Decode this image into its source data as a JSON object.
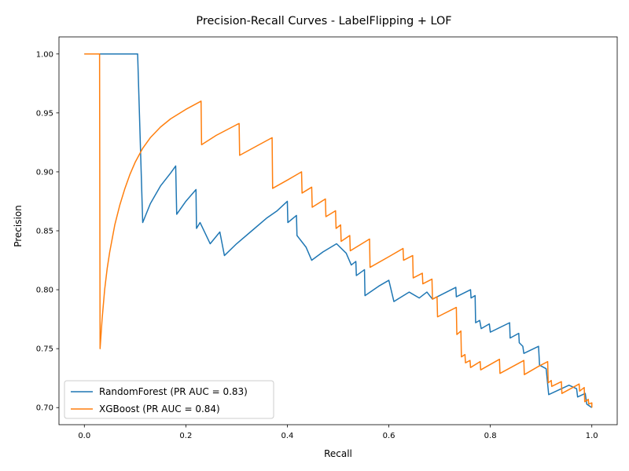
{
  "chart_data": {
    "type": "line",
    "title": "Precision-Recall Curves - LabelFlipping + LOF",
    "xlabel": "Recall",
    "ylabel": "Precision",
    "xlim": [
      -0.05,
      1.05
    ],
    "ylim": [
      0.6855,
      1.0145
    ],
    "xticks": [
      0.0,
      0.2,
      0.4,
      0.6,
      0.8,
      1.0
    ],
    "xtick_labels": [
      "0.0",
      "0.2",
      "0.4",
      "0.6",
      "0.8",
      "1.0"
    ],
    "yticks": [
      0.7,
      0.75,
      0.8,
      0.85,
      0.9,
      0.95,
      1.0
    ],
    "ytick_labels": [
      "0.70",
      "0.75",
      "0.80",
      "0.85",
      "0.90",
      "0.95",
      "1.00"
    ],
    "grid": false,
    "legend_position": "lower-left",
    "series": [
      {
        "name": "RandomForest (PR AUC = 0.83)",
        "color": "#1f77b4",
        "points": [
          [
            0.0,
            1.0
          ],
          [
            0.105,
            1.0
          ],
          [
            0.115,
            0.857
          ],
          [
            0.13,
            0.873
          ],
          [
            0.15,
            0.888
          ],
          [
            0.17,
            0.899
          ],
          [
            0.18,
            0.905
          ],
          [
            0.182,
            0.864
          ],
          [
            0.2,
            0.875
          ],
          [
            0.22,
            0.885
          ],
          [
            0.221,
            0.852
          ],
          [
            0.228,
            0.857
          ],
          [
            0.248,
            0.839
          ],
          [
            0.267,
            0.849
          ],
          [
            0.276,
            0.829
          ],
          [
            0.3,
            0.839
          ],
          [
            0.33,
            0.85
          ],
          [
            0.36,
            0.861
          ],
          [
            0.38,
            0.867
          ],
          [
            0.4,
            0.875
          ],
          [
            0.401,
            0.857
          ],
          [
            0.418,
            0.863
          ],
          [
            0.419,
            0.846
          ],
          [
            0.437,
            0.836
          ],
          [
            0.448,
            0.825
          ],
          [
            0.47,
            0.832
          ],
          [
            0.497,
            0.839
          ],
          [
            0.516,
            0.831
          ],
          [
            0.526,
            0.821
          ],
          [
            0.535,
            0.824
          ],
          [
            0.536,
            0.812
          ],
          [
            0.552,
            0.817
          ],
          [
            0.553,
            0.795
          ],
          [
            0.58,
            0.803
          ],
          [
            0.6,
            0.808
          ],
          [
            0.61,
            0.79
          ],
          [
            0.64,
            0.798
          ],
          [
            0.66,
            0.793
          ],
          [
            0.675,
            0.798
          ],
          [
            0.686,
            0.792
          ],
          [
            0.7,
            0.795
          ],
          [
            0.732,
            0.802
          ],
          [
            0.733,
            0.794
          ],
          [
            0.761,
            0.8
          ],
          [
            0.762,
            0.793
          ],
          [
            0.77,
            0.795
          ],
          [
            0.771,
            0.772
          ],
          [
            0.779,
            0.774
          ],
          [
            0.782,
            0.767
          ],
          [
            0.798,
            0.771
          ],
          [
            0.8,
            0.764
          ],
          [
            0.838,
            0.772
          ],
          [
            0.839,
            0.759
          ],
          [
            0.856,
            0.763
          ],
          [
            0.857,
            0.755
          ],
          [
            0.864,
            0.752
          ],
          [
            0.866,
            0.746
          ],
          [
            0.895,
            0.752
          ],
          [
            0.897,
            0.736
          ],
          [
            0.91,
            0.733
          ],
          [
            0.915,
            0.711
          ],
          [
            0.955,
            0.719
          ],
          [
            0.97,
            0.716
          ],
          [
            0.972,
            0.709
          ],
          [
            0.987,
            0.712
          ],
          [
            0.99,
            0.703
          ],
          [
            1.0,
            0.7
          ]
        ]
      },
      {
        "name": "XGBoost (PR AUC = 0.84)",
        "color": "#ff7f0e",
        "points": [
          [
            0.0,
            1.0
          ],
          [
            0.03,
            1.0
          ],
          [
            0.031,
            0.75
          ],
          [
            0.035,
            0.775
          ],
          [
            0.04,
            0.8
          ],
          [
            0.045,
            0.818
          ],
          [
            0.05,
            0.832
          ],
          [
            0.06,
            0.855
          ],
          [
            0.07,
            0.872
          ],
          [
            0.08,
            0.886
          ],
          [
            0.09,
            0.898
          ],
          [
            0.1,
            0.908
          ],
          [
            0.115,
            0.92
          ],
          [
            0.13,
            0.929
          ],
          [
            0.15,
            0.938
          ],
          [
            0.17,
            0.945
          ],
          [
            0.2,
            0.953
          ],
          [
            0.23,
            0.96
          ],
          [
            0.231,
            0.923
          ],
          [
            0.26,
            0.931
          ],
          [
            0.3,
            0.94
          ],
          [
            0.305,
            0.941
          ],
          [
            0.306,
            0.914
          ],
          [
            0.34,
            0.922
          ],
          [
            0.37,
            0.929
          ],
          [
            0.371,
            0.886
          ],
          [
            0.4,
            0.893
          ],
          [
            0.428,
            0.9
          ],
          [
            0.429,
            0.882
          ],
          [
            0.448,
            0.887
          ],
          [
            0.449,
            0.87
          ],
          [
            0.475,
            0.877
          ],
          [
            0.476,
            0.862
          ],
          [
            0.495,
            0.867
          ],
          [
            0.496,
            0.852
          ],
          [
            0.505,
            0.855
          ],
          [
            0.506,
            0.841
          ],
          [
            0.523,
            0.846
          ],
          [
            0.524,
            0.833
          ],
          [
            0.562,
            0.843
          ],
          [
            0.563,
            0.819
          ],
          [
            0.6,
            0.828
          ],
          [
            0.628,
            0.835
          ],
          [
            0.629,
            0.825
          ],
          [
            0.647,
            0.829
          ],
          [
            0.648,
            0.81
          ],
          [
            0.666,
            0.814
          ],
          [
            0.667,
            0.805
          ],
          [
            0.685,
            0.809
          ],
          [
            0.686,
            0.792
          ],
          [
            0.695,
            0.794
          ],
          [
            0.696,
            0.777
          ],
          [
            0.733,
            0.785
          ],
          [
            0.734,
            0.762
          ],
          [
            0.742,
            0.765
          ],
          [
            0.743,
            0.743
          ],
          [
            0.75,
            0.745
          ],
          [
            0.751,
            0.738
          ],
          [
            0.76,
            0.74
          ],
          [
            0.761,
            0.734
          ],
          [
            0.78,
            0.739
          ],
          [
            0.781,
            0.732
          ],
          [
            0.818,
            0.741
          ],
          [
            0.819,
            0.729
          ],
          [
            0.866,
            0.74
          ],
          [
            0.867,
            0.728
          ],
          [
            0.895,
            0.735
          ],
          [
            0.913,
            0.739
          ],
          [
            0.914,
            0.721
          ],
          [
            0.92,
            0.723
          ],
          [
            0.921,
            0.718
          ],
          [
            0.94,
            0.722
          ],
          [
            0.941,
            0.712
          ],
          [
            0.975,
            0.72
          ],
          [
            0.976,
            0.714
          ],
          [
            0.985,
            0.717
          ],
          [
            0.986,
            0.705
          ],
          [
            0.993,
            0.707
          ],
          [
            0.994,
            0.703
          ],
          [
            1.0,
            0.704
          ],
          [
            1.0,
            0.7
          ]
        ]
      }
    ]
  }
}
